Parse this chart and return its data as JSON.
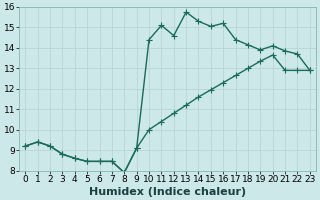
{
  "xlabel": "Humidex (Indice chaleur)",
  "ylabel": "",
  "background_color": "#cce8e8",
  "line_color": "#1a6b5a",
  "grid_color": "#b8d4d4",
  "xlim": [
    -0.5,
    23.5
  ],
  "ylim": [
    8,
    16
  ],
  "xticks": [
    0,
    1,
    2,
    3,
    4,
    5,
    6,
    7,
    8,
    9,
    10,
    11,
    12,
    13,
    14,
    15,
    16,
    17,
    18,
    19,
    20,
    21,
    22,
    23
  ],
  "yticks": [
    8,
    9,
    10,
    11,
    12,
    13,
    14,
    15,
    16
  ],
  "series1_x": [
    0,
    1,
    2,
    3,
    4,
    5,
    6,
    7,
    8,
    9,
    10,
    11,
    12,
    13,
    14,
    15,
    16,
    17,
    18,
    19,
    20,
    21,
    22,
    23
  ],
  "series1_y": [
    9.2,
    9.4,
    9.2,
    8.8,
    8.6,
    8.45,
    8.45,
    8.45,
    7.9,
    9.1,
    14.4,
    15.1,
    14.6,
    15.75,
    15.3,
    15.05,
    15.2,
    14.4,
    14.15,
    13.9,
    14.1,
    13.85,
    13.7,
    12.9
  ],
  "series2_x": [
    0,
    1,
    2,
    3,
    4,
    5,
    6,
    7,
    8,
    9,
    10,
    11,
    12,
    13,
    14,
    15,
    16,
    17,
    18,
    19,
    20,
    21,
    22,
    23
  ],
  "series2_y": [
    9.2,
    9.4,
    9.2,
    8.8,
    8.6,
    8.45,
    8.45,
    8.45,
    7.9,
    9.1,
    10.0,
    10.4,
    10.8,
    11.2,
    11.6,
    11.95,
    12.3,
    12.65,
    13.0,
    13.35,
    13.65,
    12.9,
    12.9,
    12.9
  ],
  "marker_size": 2.5,
  "line_width": 1.0,
  "xlabel_fontsize": 8,
  "tick_fontsize": 6.5
}
